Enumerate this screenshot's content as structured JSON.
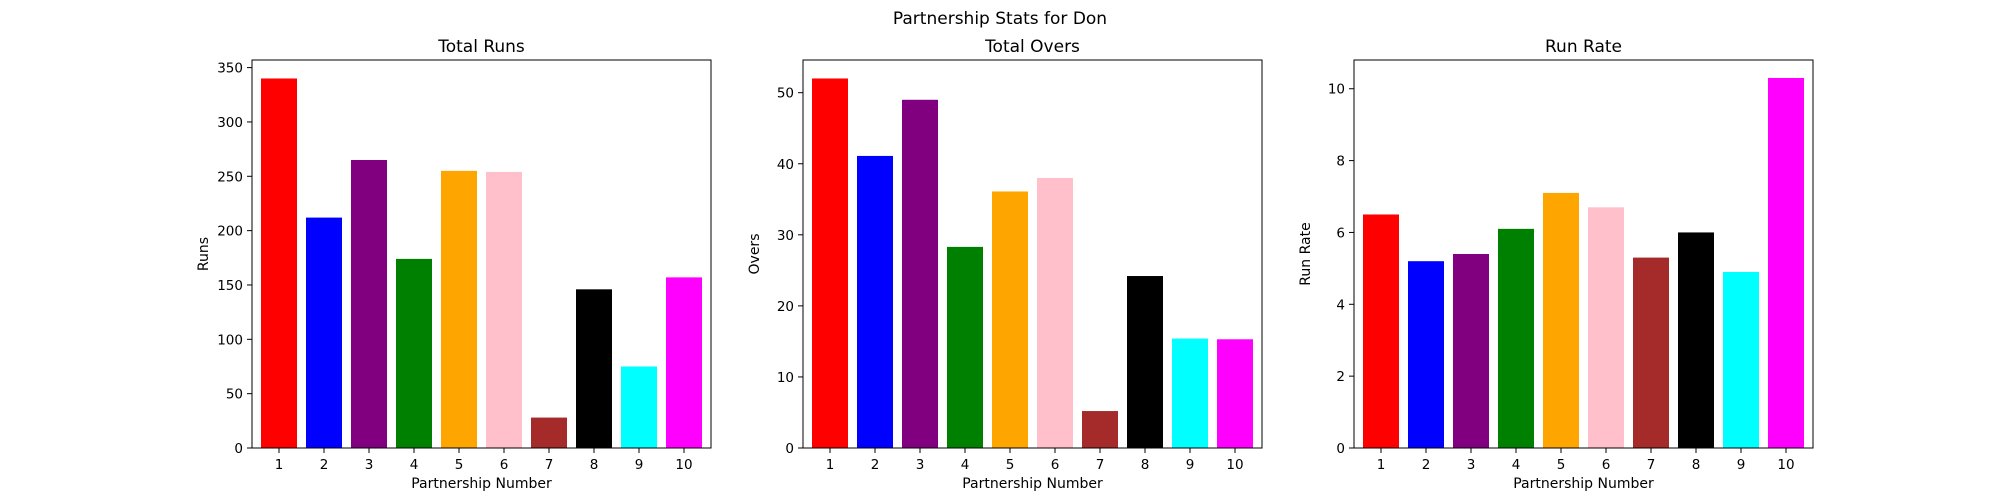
{
  "suptitle": "Partnership Stats for Don",
  "chart_data": [
    {
      "type": "bar",
      "title": "Total Runs",
      "xlabel": "Partnership Number",
      "ylabel": "Runs",
      "categories": [
        "1",
        "2",
        "3",
        "4",
        "5",
        "6",
        "7",
        "8",
        "9",
        "10"
      ],
      "values": [
        340,
        212,
        265,
        174,
        255,
        254,
        28,
        146,
        75,
        157
      ],
      "colors": [
        "#ff0000",
        "#0000ff",
        "#800080",
        "#008000",
        "#ffa500",
        "#ffc0cb",
        "#a52a2a",
        "#000000",
        "#00ffff",
        "#ff00ff"
      ],
      "ylim": [
        0,
        357
      ],
      "yticks": [
        0,
        50,
        100,
        150,
        200,
        250,
        300,
        350
      ],
      "grid": false
    },
    {
      "type": "bar",
      "title": "Total Overs",
      "xlabel": "Partnership Number",
      "ylabel": "Overs",
      "categories": [
        "1",
        "2",
        "3",
        "4",
        "5",
        "6",
        "7",
        "8",
        "9",
        "10"
      ],
      "values": [
        52,
        41.1,
        49,
        28.3,
        36.1,
        38,
        5.2,
        24.2,
        15.4,
        15.3
      ],
      "colors": [
        "#ff0000",
        "#0000ff",
        "#800080",
        "#008000",
        "#ffa500",
        "#ffc0cb",
        "#a52a2a",
        "#000000",
        "#00ffff",
        "#ff00ff"
      ],
      "ylim": [
        0,
        54.6
      ],
      "yticks": [
        0,
        10,
        20,
        30,
        40,
        50
      ],
      "grid": false
    },
    {
      "type": "bar",
      "title": "Run Rate",
      "xlabel": "Partnership Number",
      "ylabel": "Run Rate",
      "categories": [
        "1",
        "2",
        "3",
        "4",
        "5",
        "6",
        "7",
        "8",
        "9",
        "10"
      ],
      "values": [
        6.5,
        5.2,
        5.4,
        6.1,
        7.1,
        6.7,
        5.3,
        6.0,
        4.9,
        10.3
      ],
      "colors": [
        "#ff0000",
        "#0000ff",
        "#800080",
        "#008000",
        "#ffa500",
        "#ffc0cb",
        "#a52a2a",
        "#000000",
        "#00ffff",
        "#ff00ff"
      ],
      "ylim": [
        0,
        10.8
      ],
      "yticks": [
        0,
        2,
        4,
        6,
        8,
        10
      ],
      "grid": false
    }
  ]
}
